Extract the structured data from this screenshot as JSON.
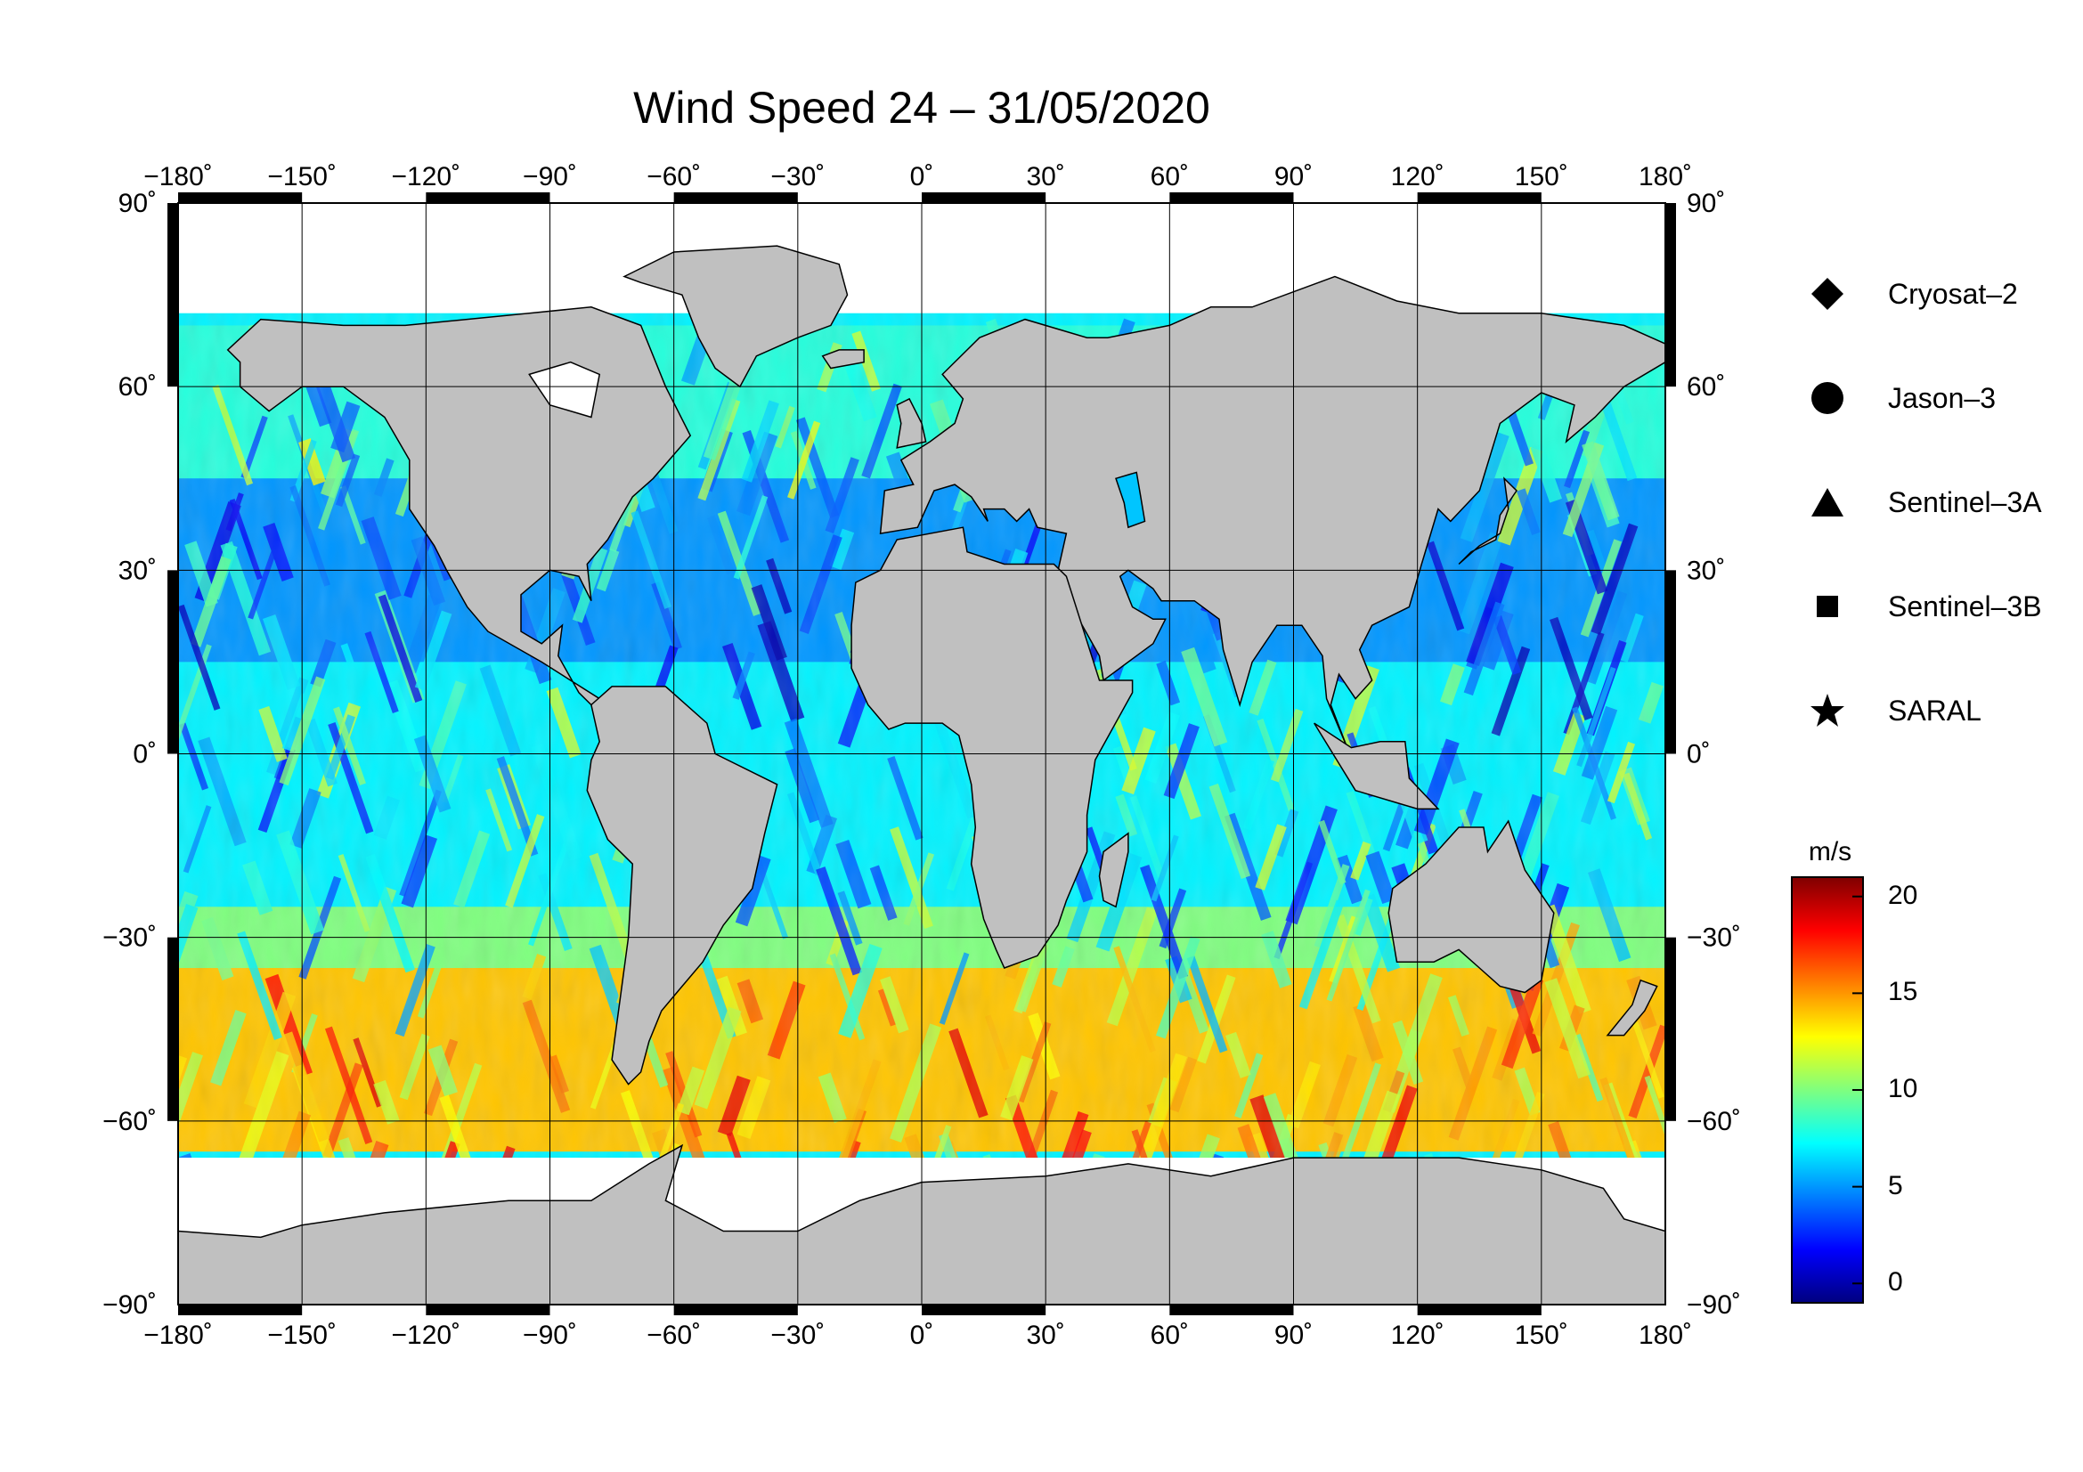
{
  "title": "Wind Speed 24 – 31/05/2020",
  "map": {
    "projection": "equirectangular",
    "lon_range": [
      -180,
      180
    ],
    "lat_range": [
      -90,
      90
    ],
    "lon_ticks": [
      -180,
      -150,
      -120,
      -90,
      -60,
      -30,
      0,
      30,
      60,
      90,
      120,
      150,
      180
    ],
    "lat_ticks": [
      -90,
      -60,
      -30,
      0,
      30,
      60,
      90
    ],
    "lon_tick_labels": [
      "−180˚",
      "−150˚",
      "−120˚",
      "−90˚",
      "−60˚",
      "−30˚",
      "0˚",
      "30˚",
      "60˚",
      "90˚",
      "120˚",
      "150˚",
      "180˚"
    ],
    "lat_tick_labels": [
      "−90˚",
      "−60˚",
      "−30˚",
      "0˚",
      "30˚",
      "60˚",
      "90˚"
    ],
    "grid": true,
    "land_color": "#c0c0c0",
    "ice_color": "#ffffff"
  },
  "legend": {
    "items": [
      {
        "symbol": "diamond",
        "label": "Cryosat–2"
      },
      {
        "symbol": "circle",
        "label": "Jason–3"
      },
      {
        "symbol": "triangle",
        "label": "Sentinel–3A"
      },
      {
        "symbol": "square",
        "label": "Sentinel–3B"
      },
      {
        "symbol": "star",
        "label": "SARAL"
      }
    ]
  },
  "colorbar": {
    "unit": "m/s",
    "range": [
      -1,
      21
    ],
    "ticks": [
      0,
      5,
      10,
      15,
      20
    ],
    "tick_labels": [
      "0",
      "5",
      "10",
      "15",
      "20"
    ],
    "colormap": [
      "#00007f",
      "#0000ff",
      "#007fff",
      "#00ffff",
      "#7fff7f",
      "#ffff00",
      "#ff7f00",
      "#ff0000",
      "#7f0000"
    ]
  },
  "chart_data": {
    "type": "heatmap",
    "title": "Wind Speed 24 – 31/05/2020",
    "value_unit": "m/s",
    "zones": [
      {
        "lat_band": [
          45,
          70
        ],
        "typical_speed": 8
      },
      {
        "lat_band": [
          15,
          45
        ],
        "typical_speed": 5
      },
      {
        "lat_band": [
          0,
          15
        ],
        "typical_speed": 7
      },
      {
        "lat_band": [
          -25,
          0
        ],
        "typical_speed": 7
      },
      {
        "lat_band": [
          -35,
          -25
        ],
        "typical_speed": 10
      },
      {
        "lat_band": [
          -65,
          -35
        ],
        "typical_speed": 14
      }
    ]
  }
}
